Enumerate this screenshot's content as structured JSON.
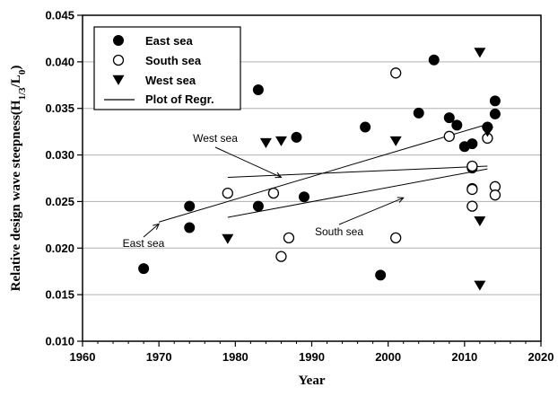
{
  "chart_data": {
    "type": "scatter",
    "title": "",
    "xlabel": "Year",
    "ylabel": {
      "main": "Relative design wave steepness(H",
      "sub1": "1/3",
      "mid": "/L",
      "sub2": "0",
      "end": ")"
    },
    "xlim": [
      1960,
      2020
    ],
    "ylim": [
      0.01,
      0.045
    ],
    "xticks": [
      "1960",
      "1970",
      "1980",
      "1990",
      "2000",
      "2010",
      "2020"
    ],
    "yticks": [
      "0.010",
      "0.015",
      "0.020",
      "0.025",
      "0.030",
      "0.035",
      "0.040",
      "0.045"
    ],
    "grid": "horizontal",
    "legend_position": "top-left",
    "series": [
      {
        "name": "East sea",
        "marker": "filled-circle",
        "points": [
          [
            1968,
            0.0178
          ],
          [
            1974,
            0.0245
          ],
          [
            1974,
            0.0222
          ],
          [
            1983,
            0.037
          ],
          [
            1983,
            0.0245
          ],
          [
            1988,
            0.0319
          ],
          [
            1989,
            0.0255
          ],
          [
            1997,
            0.033
          ],
          [
            1999,
            0.0171
          ],
          [
            2004,
            0.0345
          ],
          [
            2006,
            0.0402
          ],
          [
            2008,
            0.034
          ],
          [
            2009,
            0.0332
          ],
          [
            2010,
            0.0309
          ],
          [
            2011,
            0.0312
          ],
          [
            2011,
            0.0286
          ],
          [
            2011,
            0.0264
          ],
          [
            2013,
            0.033
          ],
          [
            2014,
            0.0358
          ],
          [
            2014,
            0.0344
          ]
        ]
      },
      {
        "name": "South sea",
        "marker": "open-circle",
        "points": [
          [
            1979,
            0.0259
          ],
          [
            1985,
            0.0259
          ],
          [
            1986,
            0.0191
          ],
          [
            1987,
            0.0211
          ],
          [
            2001,
            0.0388
          ],
          [
            2001,
            0.0211
          ],
          [
            2008,
            0.032
          ],
          [
            2011,
            0.0288
          ],
          [
            2011,
            0.0263
          ],
          [
            2011,
            0.0245
          ],
          [
            2013,
            0.0318
          ],
          [
            2014,
            0.0266
          ],
          [
            2014,
            0.0257
          ]
        ]
      },
      {
        "name": "West sea",
        "marker": "filled-triangle-down",
        "points": [
          [
            1979,
            0.021
          ],
          [
            1984,
            0.0313
          ],
          [
            1986,
            0.0315
          ],
          [
            2001,
            0.0315
          ],
          [
            2012,
            0.041
          ],
          [
            2012,
            0.0229
          ],
          [
            2012,
            0.016
          ],
          [
            2013,
            0.0325
          ]
        ]
      }
    ],
    "regression": {
      "name": "Plot of Regr.",
      "lines": [
        {
          "label": "East sea",
          "x": [
            1970,
            2013
          ],
          "y": [
            0.0228,
            0.0333
          ]
        },
        {
          "label": "South sea",
          "x": [
            1979,
            2013
          ],
          "y": [
            0.0233,
            0.0285
          ]
        },
        {
          "label": "West sea",
          "x": [
            1979,
            2013
          ],
          "y": [
            0.0276,
            0.0288
          ]
        }
      ]
    },
    "annotations": [
      {
        "text": "West sea",
        "arrow_to": [
          1986,
          0.0276
        ]
      },
      {
        "text": "South sea",
        "arrow_to": [
          2002,
          0.0254
        ]
      },
      {
        "text": "East sea",
        "arrow_to": [
          1970,
          0.0226
        ]
      }
    ]
  }
}
